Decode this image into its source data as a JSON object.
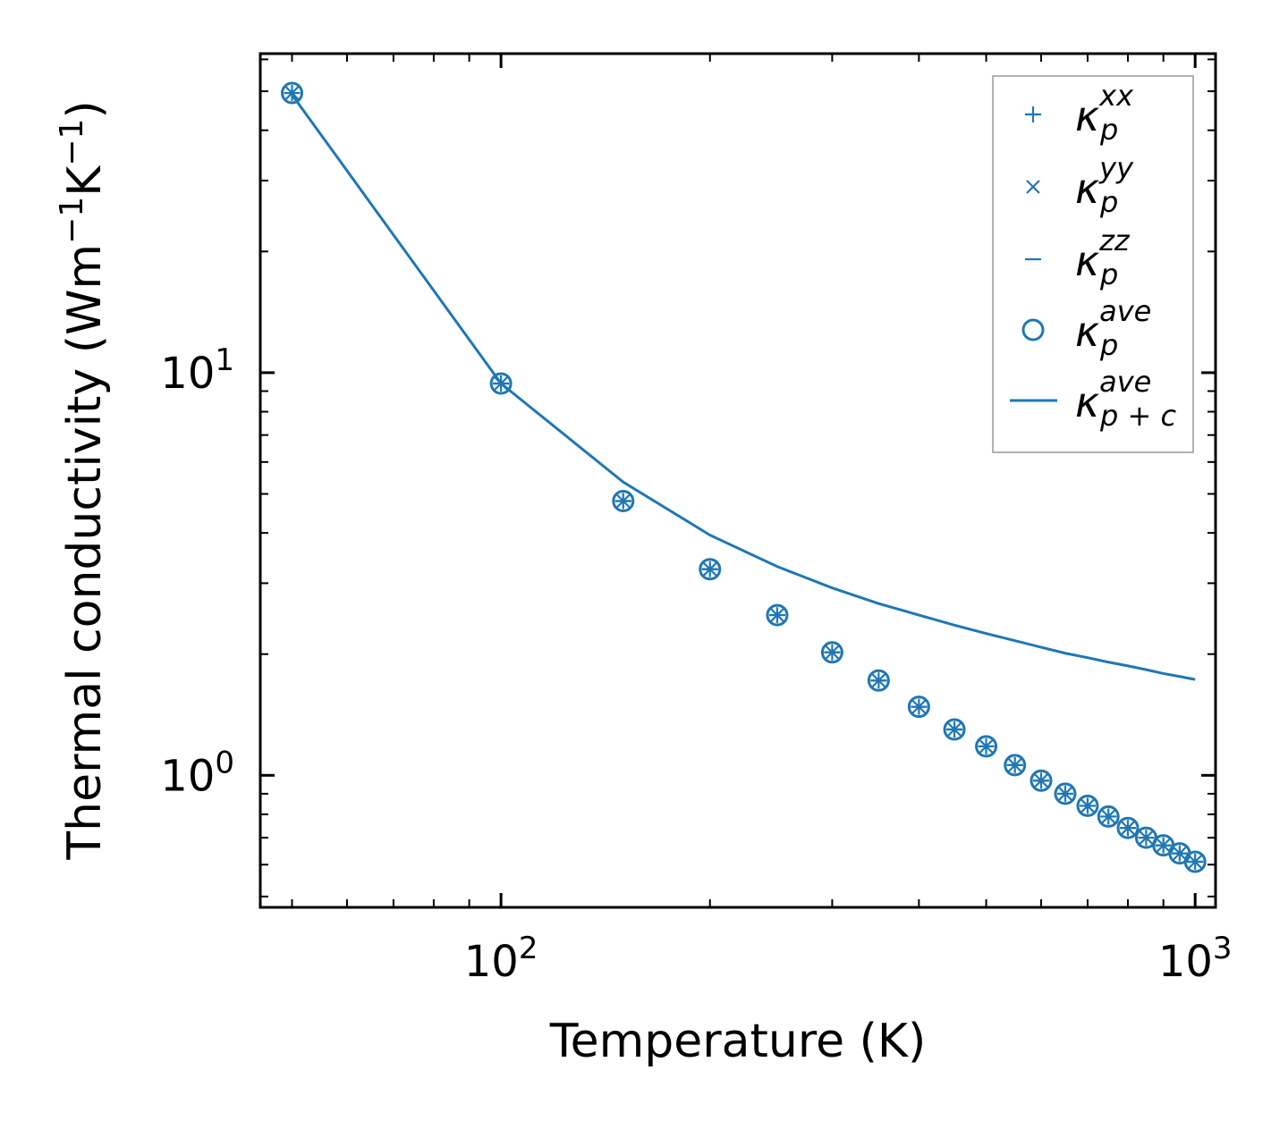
{
  "chart_data": {
    "type": "scatter",
    "xscale": "log",
    "yscale": "log",
    "xlabel": "Temperature (K)",
    "ylabel": "Thermal conductivity (Wm",
    "ylabel_sup1": "−1",
    "ylabel_mid": "K",
    "ylabel_sup2": "−1",
    "ylabel_end": ")",
    "xlim": [
      45,
      1070
    ],
    "ylim": [
      0.47,
      62
    ],
    "xticks": [
      {
        "base": "10",
        "exp": "2",
        "value": 100
      },
      {
        "base": "10",
        "exp": "3",
        "value": 1000
      }
    ],
    "yticks": [
      {
        "base": "10",
        "exp": "0",
        "value": 1
      },
      {
        "base": "10",
        "exp": "1",
        "value": 10
      }
    ],
    "color": "#1f77b4",
    "x": [
      50,
      100,
      150,
      200,
      250,
      300,
      350,
      400,
      450,
      500,
      550,
      600,
      650,
      700,
      750,
      800,
      850,
      900,
      950,
      1000
    ],
    "series": [
      {
        "name": "kappa_p_xx",
        "marker": "plus",
        "values": [
          49.5,
          9.4,
          4.8,
          3.25,
          2.5,
          2.02,
          1.72,
          1.48,
          1.3,
          1.18,
          1.06,
          0.97,
          0.9,
          0.84,
          0.79,
          0.74,
          0.7,
          0.67,
          0.64,
          0.61
        ]
      },
      {
        "name": "kappa_p_yy",
        "marker": "x",
        "values": [
          49.5,
          9.4,
          4.8,
          3.25,
          2.5,
          2.02,
          1.72,
          1.48,
          1.3,
          1.18,
          1.06,
          0.97,
          0.9,
          0.84,
          0.79,
          0.74,
          0.7,
          0.67,
          0.64,
          0.61
        ]
      },
      {
        "name": "kappa_p_zz",
        "marker": "hline",
        "values": [
          49.5,
          9.4,
          4.8,
          3.25,
          2.5,
          2.02,
          1.72,
          1.48,
          1.3,
          1.18,
          1.06,
          0.97,
          0.9,
          0.84,
          0.79,
          0.74,
          0.7,
          0.67,
          0.64,
          0.61
        ]
      },
      {
        "name": "kappa_p_ave",
        "marker": "circle",
        "values": [
          49.5,
          9.4,
          4.8,
          3.25,
          2.5,
          2.02,
          1.72,
          1.48,
          1.3,
          1.18,
          1.06,
          0.97,
          0.9,
          0.84,
          0.79,
          0.74,
          0.7,
          0.67,
          0.64,
          0.61
        ]
      },
      {
        "name": "kappa_p+c_ave",
        "marker": "line",
        "values": [
          49.0,
          9.4,
          5.35,
          3.95,
          3.3,
          2.92,
          2.67,
          2.5,
          2.36,
          2.25,
          2.16,
          2.08,
          2.01,
          1.96,
          1.91,
          1.87,
          1.83,
          1.79,
          1.76,
          1.73
        ]
      }
    ],
    "legend": {
      "position": "top-right",
      "entries": [
        {
          "marker": "plus",
          "sym": "κ",
          "sub": "p",
          "sup": "xx"
        },
        {
          "marker": "x",
          "sym": "κ",
          "sub": "p",
          "sup": "yy"
        },
        {
          "marker": "hline",
          "sym": "κ",
          "sub": "p",
          "sup": "zz"
        },
        {
          "marker": "circle",
          "sym": "κ",
          "sub": "p",
          "sup": "ave"
        },
        {
          "marker": "line",
          "sym": "κ",
          "sub": "p + c",
          "sup": "ave"
        }
      ]
    }
  }
}
